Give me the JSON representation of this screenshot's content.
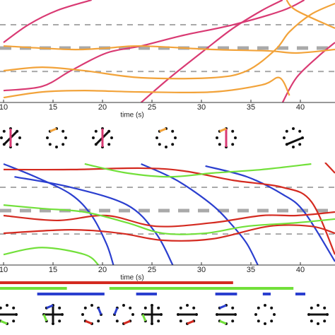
{
  "chart_data": [
    {
      "type": "line",
      "xlabel": "time (s)",
      "xlim": [
        9.64,
        43.5
      ],
      "ylim": [
        -0.33,
        4.06
      ],
      "xticks": [
        10,
        15,
        20,
        25,
        30,
        35,
        40
      ],
      "reference_lines": [
        1,
        2,
        3
      ],
      "series": [
        {
          "color": "#d93a73",
          "x": [
            10,
            12.5,
            15.4,
            18.9
          ],
          "values": [
            2.24,
            3.0,
            3.61,
            4.06
          ]
        },
        {
          "color": "#d93a73",
          "x": [
            10,
            13.9,
            16.8,
            20.4,
            23.9,
            28.2,
            33.2,
            38.2,
            40.4
          ],
          "values": [
            0.18,
            0.36,
            1.03,
            1.79,
            2.09,
            2.55,
            3.0,
            3.61,
            4.06
          ]
        },
        {
          "color": "#d93a73",
          "x": [
            23.9,
            26.8,
            30.4,
            33.2,
            36.1,
            38.2
          ],
          "values": [
            -0.33,
            0.73,
            1.94,
            2.85,
            3.61,
            4.06
          ]
        },
        {
          "color": "#d93a73",
          "x": [
            38.2,
            39.6,
            41.8,
            43.5
          ],
          "values": [
            -0.33,
            0.73,
            1.64,
            2.24
          ]
        },
        {
          "color": "#f2a33a",
          "x": [
            10,
            16.8,
            20.4,
            23.9,
            31.1,
            36.8,
            39.6,
            43.5
          ],
          "values": [
            2.09,
            1.94,
            2.0,
            2.09,
            1.94,
            1.88,
            1.79,
            1.94
          ]
        },
        {
          "color": "#f2a33a",
          "x": [
            10,
            13.9,
            18.2,
            23.9,
            31.1,
            34.6,
            37.5,
            38.9,
            41.1,
            43.5
          ],
          "values": [
            1.03,
            1.18,
            1.03,
            0.73,
            0.73,
            1.03,
            1.94,
            2.7,
            3.45,
            3.91
          ]
        },
        {
          "color": "#f2a33a",
          "x": [
            10,
            13.9,
            18.2,
            23.9,
            31.1,
            36.1,
            37.9,
            38.9
          ],
          "values": [
            -0.12,
            0.12,
            0.18,
            0.12,
            0.12,
            0.42,
            0.73,
            -0.03
          ]
        },
        {
          "color": "#f2a33a",
          "x": [
            38.6,
            39.6,
            43.5
          ],
          "values": [
            4.06,
            3.61,
            2.85
          ]
        }
      ]
    },
    {
      "type": "line",
      "xlabel": "time (s)",
      "xlim": [
        9.64,
        43.5
      ],
      "ylim": [
        -0.33,
        4.06
      ],
      "xticks": [
        10,
        15,
        20,
        25,
        30,
        35,
        40
      ],
      "reference_lines": [
        1,
        2,
        3
      ],
      "series": [
        {
          "color": "#2b3fcf",
          "x": [
            10,
            13.2,
            16.8,
            18.9,
            20.4,
            21.1
          ],
          "values": [
            4.0,
            3.45,
            2.7,
            1.79,
            0.58,
            -0.33
          ]
        },
        {
          "color": "#2b3fcf",
          "x": [
            11.1,
            16.8,
            22.5,
            25.4,
            27.1
          ],
          "values": [
            3.45,
            3.0,
            2.24,
            1.03,
            -0.33
          ]
        },
        {
          "color": "#2b3fcf",
          "x": [
            23.9,
            27.5,
            31.1,
            33.2,
            34.6,
            35.7
          ],
          "values": [
            4.0,
            3.3,
            2.24,
            1.33,
            0.58,
            -0.33
          ]
        },
        {
          "color": "#2b3fcf",
          "x": [
            30.4,
            34.6,
            38.2,
            40.4,
            43.5
          ],
          "values": [
            3.91,
            3.45,
            2.7,
            1.94,
            -0.18
          ]
        },
        {
          "color": "#d42a20",
          "x": [
            10,
            16.8,
            23.9,
            28.2,
            33.2,
            38.2,
            41.1,
            43.5
          ],
          "values": [
            3.76,
            3.76,
            3.82,
            3.7,
            3.3,
            3.0,
            2.39,
            0.12
          ]
        },
        {
          "color": "#d42a20",
          "x": [
            10,
            15.4,
            20.4,
            25.4,
            31.1,
            36.1,
            39.6,
            43.5
          ],
          "values": [
            1.79,
            1.58,
            1.79,
            1.33,
            1.48,
            1.79,
            1.79,
            1.94
          ]
        },
        {
          "color": "#d42a20",
          "x": [
            10,
            16.8,
            21.8,
            26.1,
            31.1,
            36.8,
            41.1,
            43.5
          ],
          "values": [
            1.03,
            1.18,
            1.03,
            0.73,
            0.79,
            1.33,
            1.33,
            1.03
          ]
        },
        {
          "color": "#d42a20",
          "x": [
            42.5,
            43.5
          ],
          "values": [
            4.06,
            3.61
          ]
        },
        {
          "color": "#72e03a",
          "x": [
            10,
            13.9,
            18.2,
            22.5,
            26.1,
            30.4,
            34.6,
            39.6,
            43.5
          ],
          "values": [
            2.24,
            2.09,
            1.94,
            1.48,
            1.03,
            1.03,
            1.33,
            1.48,
            1.64
          ]
        },
        {
          "color": "#72e03a",
          "x": [
            18.2,
            22.5,
            26.8,
            31.1,
            36.1,
            41.1
          ],
          "values": [
            4.0,
            3.61,
            3.45,
            3.61,
            3.76,
            4.0
          ]
        },
        {
          "color": "#72e03a",
          "x": [
            10,
            13.9,
            18.2,
            19.6
          ],
          "values": [
            0.12,
            0.42,
            0.12,
            -0.33
          ]
        }
      ],
      "intervals": [
        {
          "color": "#d42a20",
          "spans": [
            [
              9.64,
              33.2
            ]
          ]
        },
        {
          "color": "#72e03a",
          "spans": [
            [
              9.64,
              16.4
            ],
            [
              20.7,
              39.3
            ]
          ]
        },
        {
          "color": "#2b3fcf",
          "spans": [
            [
              13.4,
              20.2
            ],
            [
              23.4,
              25.5
            ],
            [
              31.4,
              33.6
            ],
            [
              36.2,
              37.0
            ],
            [
              39.5,
              40.5
            ]
          ]
        }
      ]
    }
  ]
}
